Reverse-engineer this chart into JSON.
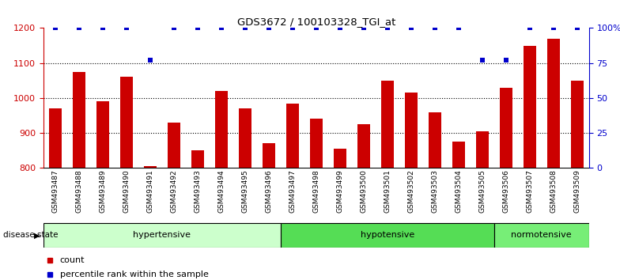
{
  "title": "GDS3672 / 100103328_TGI_at",
  "samples": [
    "GSM493487",
    "GSM493488",
    "GSM493489",
    "GSM493490",
    "GSM493491",
    "GSM493492",
    "GSM493493",
    "GSM493494",
    "GSM493495",
    "GSM493496",
    "GSM493497",
    "GSM493498",
    "GSM493499",
    "GSM493500",
    "GSM493501",
    "GSM493502",
    "GSM493503",
    "GSM493504",
    "GSM493505",
    "GSM493506",
    "GSM493507",
    "GSM493508",
    "GSM493509"
  ],
  "counts": [
    970,
    1075,
    990,
    1060,
    805,
    930,
    850,
    1020,
    970,
    870,
    985,
    940,
    855,
    925,
    1050,
    1015,
    960,
    875,
    905,
    1030,
    1150,
    1170,
    1050
  ],
  "percentiles": [
    100,
    100,
    100,
    100,
    77,
    100,
    100,
    100,
    100,
    100,
    100,
    100,
    100,
    100,
    100,
    100,
    100,
    100,
    77,
    77,
    100,
    100,
    100
  ],
  "bar_color": "#cc0000",
  "dot_color": "#0000cc",
  "ylim_left": [
    800,
    1200
  ],
  "ylim_right": [
    0,
    100
  ],
  "yticks_left": [
    800,
    900,
    1000,
    1100,
    1200
  ],
  "yticks_right": [
    0,
    25,
    50,
    75,
    100
  ],
  "yticklabels_right": [
    "0",
    "25",
    "50",
    "75",
    "100%"
  ],
  "grid_values": [
    900,
    1000,
    1100
  ],
  "bar_width": 0.55,
  "background_color": "#ffffff",
  "legend_count_label": "count",
  "legend_percentile_label": "percentile rank within the sample",
  "disease_state_label": "disease state",
  "left_axis_color": "#cc0000",
  "right_axis_color": "#0000cc",
  "group_defs": [
    {
      "name": "hypertensive",
      "start": 0,
      "end": 10,
      "color": "#ccffcc"
    },
    {
      "name": "hypotensive",
      "start": 10,
      "end": 19,
      "color": "#55dd55"
    },
    {
      "name": "normotensive",
      "start": 19,
      "end": 23,
      "color": "#77ee77"
    }
  ]
}
